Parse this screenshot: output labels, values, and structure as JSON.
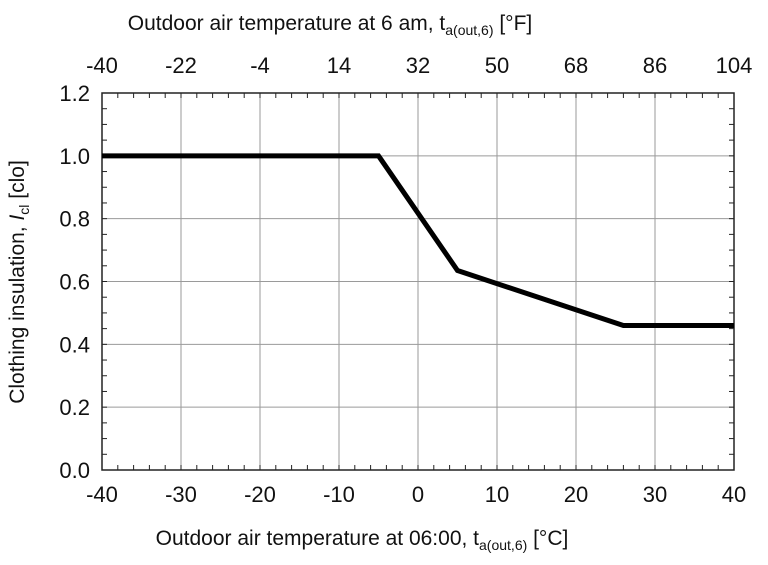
{
  "chart_data": {
    "type": "line",
    "title": "",
    "xlabel": {
      "prefix": "Outdoor air temperature at 06:00, t",
      "subscript": "a(out,6)",
      "suffix": " [°C]"
    },
    "ylabel": {
      "prefix": "Clothing insulation, ",
      "italic": "I",
      "subscript": "cl",
      "suffix": " [clo]"
    },
    "x2label": {
      "prefix": "Outdoor air temperature at 6 am, t",
      "subscript": "a(out,6)",
      "suffix": " [°F]"
    },
    "xlim": [
      -40,
      40
    ],
    "ylim": [
      0.0,
      1.2
    ],
    "x_ticks": [
      "-40",
      "-30",
      "-20",
      "-10",
      "0",
      "10",
      "20",
      "30",
      "40"
    ],
    "x_tick_values": [
      -40,
      -30,
      -20,
      -10,
      0,
      10,
      20,
      30,
      40
    ],
    "y_ticks": [
      "0.0",
      "0.2",
      "0.4",
      "0.6",
      "0.8",
      "1.0",
      "1.2"
    ],
    "y_tick_values": [
      0.0,
      0.2,
      0.4,
      0.6,
      0.8,
      1.0,
      1.2
    ],
    "x2_ticks": [
      "-40",
      "-22",
      "-4",
      "14",
      "32",
      "50",
      "68",
      "86",
      "104"
    ],
    "x2_tick_values_degC": [
      -40,
      -30,
      -20,
      -10,
      0,
      10,
      20,
      30,
      40
    ],
    "grid": true,
    "series": [
      {
        "x": [
          -40,
          -5,
          5,
          26,
          40
        ],
        "y": [
          1.0,
          1.0,
          0.635,
          0.46,
          0.46
        ],
        "color": "#000000"
      }
    ]
  }
}
